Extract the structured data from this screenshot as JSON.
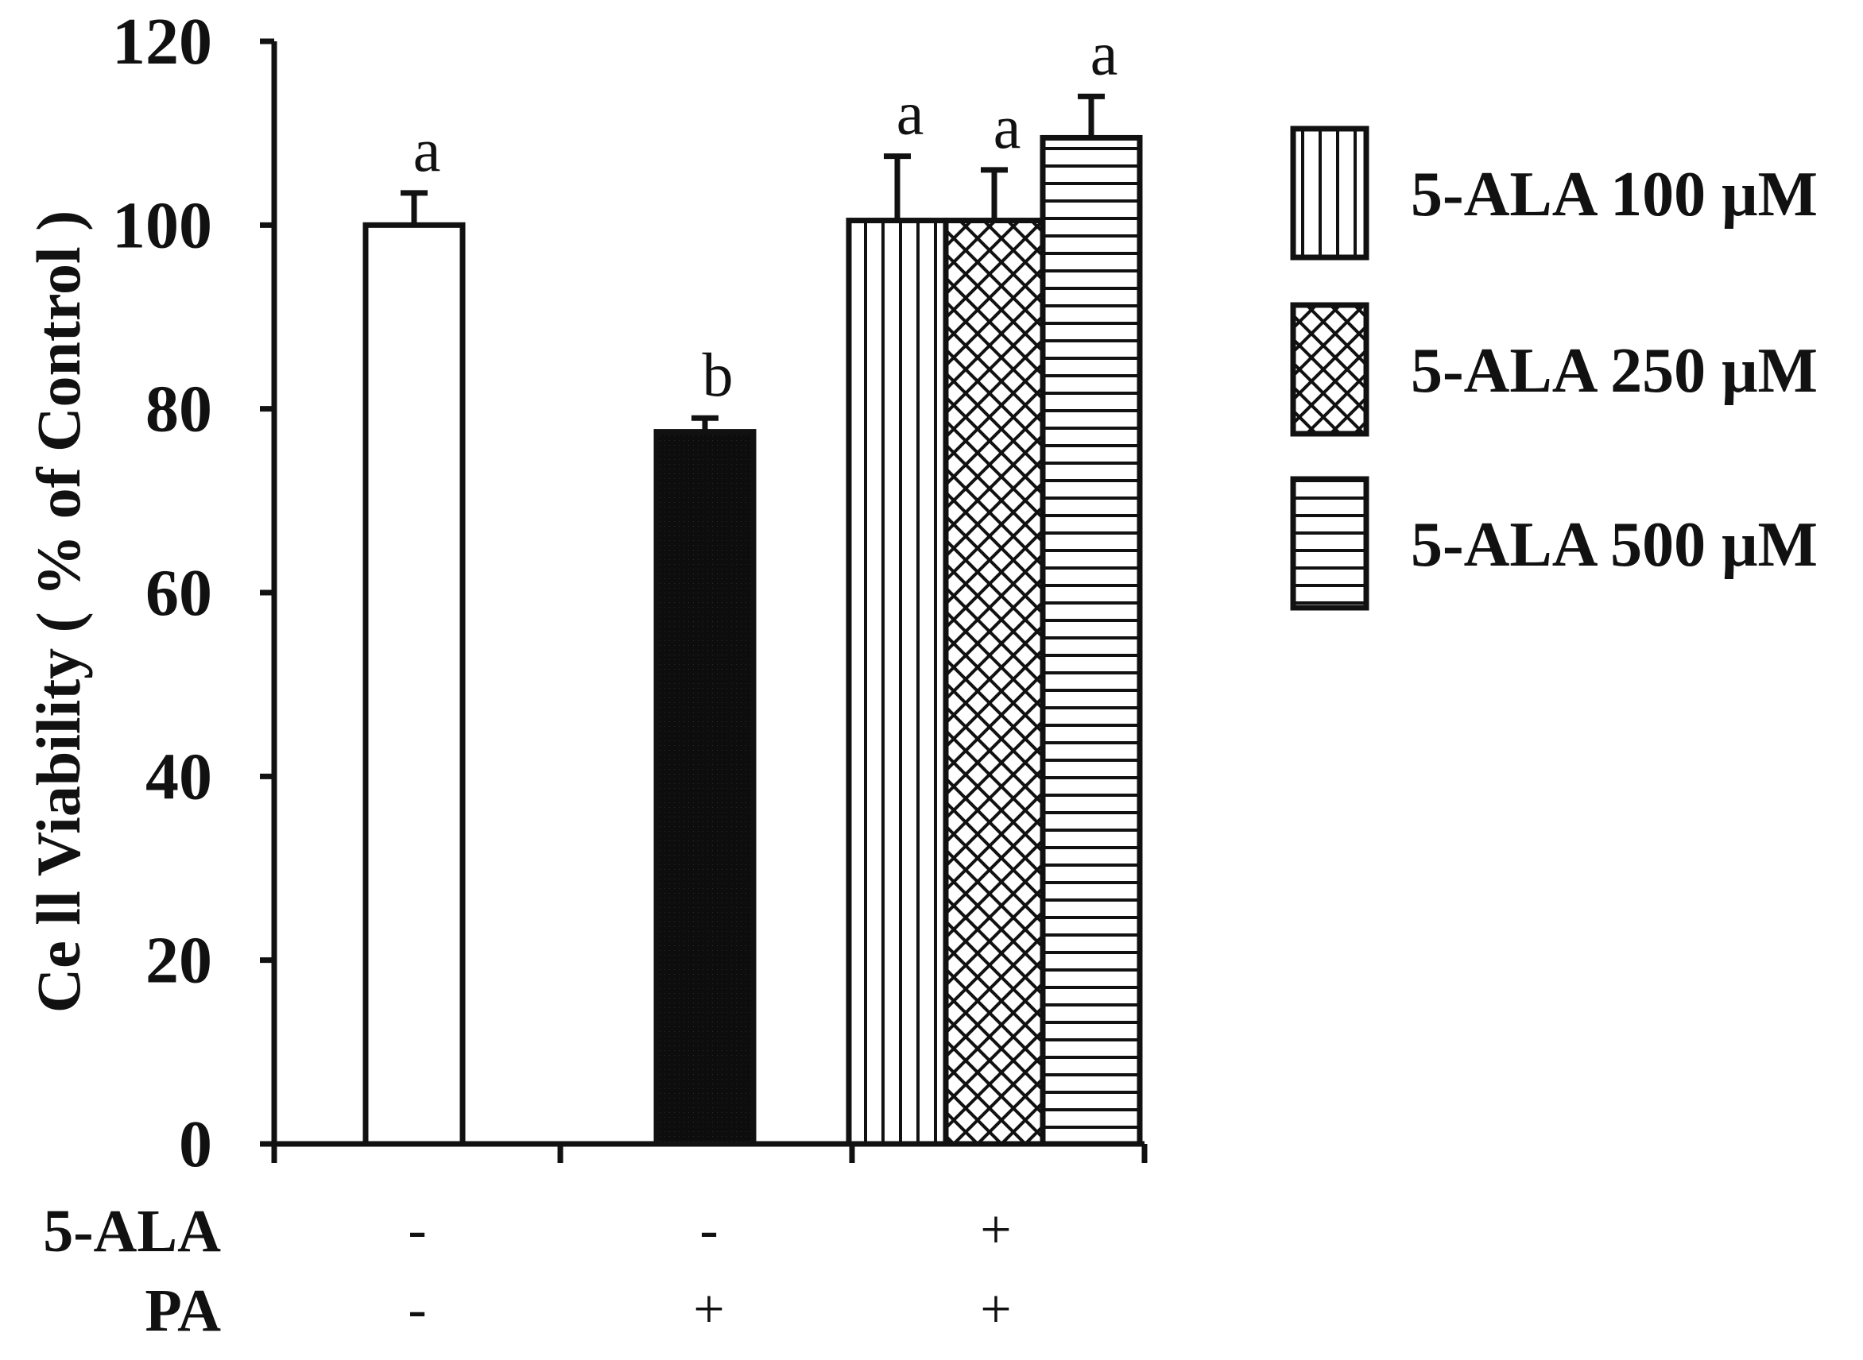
{
  "chart_data": {
    "type": "bar",
    "title": "",
    "xlabel": "",
    "ylabel": "Ce ll Viability ( % of Control )",
    "ylim": [
      0,
      120
    ],
    "yticks": [
      0,
      20,
      40,
      60,
      80,
      100,
      120
    ],
    "grid": false,
    "legend_position": "right",
    "bars": [
      {
        "name": "",
        "value": 100,
        "error": 3.5,
        "sig": "a",
        "pattern": "white"
      },
      {
        "name": "",
        "value": 77.5,
        "error": 1.5,
        "sig": "b",
        "pattern": "black"
      },
      {
        "name": "5-ALA 100 μM",
        "value": 100.5,
        "error": 7,
        "sig": "a",
        "pattern": "vertical"
      },
      {
        "name": "5-ALA 250 μM",
        "value": 100.5,
        "error": 5.5,
        "sig": "a",
        "pattern": "crosshatch"
      },
      {
        "name": "5-ALA 500 μM",
        "value": 109.5,
        "error": 4.5,
        "sig": "a",
        "pattern": "horizontal"
      }
    ],
    "legend": [
      {
        "label": "5-ALA 100 μM",
        "pattern": "vertical"
      },
      {
        "label": "5-ALA 250 μM",
        "pattern": "crosshatch"
      },
      {
        "label": "5-ALA 500 μM",
        "pattern": "horizontal"
      }
    ],
    "conditions": [
      {
        "label": "5-ALA",
        "values": [
          "-",
          "-",
          "+"
        ]
      },
      {
        "label": "PA",
        "values": [
          "-",
          "+",
          "+"
        ]
      }
    ]
  },
  "colors": {
    "ink": "#111111",
    "background": "#ffffff",
    "black_bar": "#0d0d0d"
  }
}
